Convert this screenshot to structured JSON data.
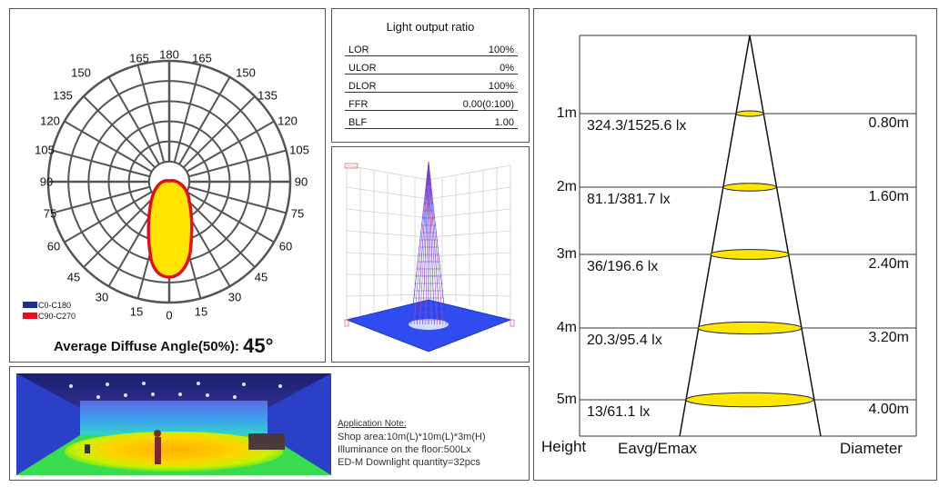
{
  "polar": {
    "angle_labels": {
      "top": [
        "165",
        "180",
        "165"
      ],
      "left": [
        "150",
        "135",
        "120",
        "105",
        "90",
        "75",
        "60",
        "45",
        "30",
        "15"
      ],
      "right": [
        "150",
        "135",
        "120",
        "105",
        "90",
        "75",
        "60",
        "45",
        "30",
        "15"
      ],
      "bottom": "0"
    },
    "legend": [
      {
        "label": "C0-C180",
        "color": "#1f2f8f"
      },
      {
        "label": "C90-C270",
        "color": "#e0101e"
      }
    ],
    "avg_angle_label": "Average Diffuse Angle(50%):",
    "avg_angle_value": "45°"
  },
  "light_output_ratio": {
    "title": "Light output ratio",
    "rows": [
      {
        "label": "LOR",
        "value": "100%"
      },
      {
        "label": "ULOR",
        "value": "0%"
      },
      {
        "label": "DLOR",
        "value": "100%"
      },
      {
        "label": "FFR",
        "value": "0.00(0:100)"
      },
      {
        "label": "BLF",
        "value": "1.00"
      }
    ]
  },
  "application_note": {
    "heading": "Application Note:",
    "lines": [
      "Shop area:10m(L)*10m(L)*3m(H)",
      "Illuminance on the floor:500Lx",
      "ED-M Downlight quantity=32pcs"
    ]
  },
  "cone": {
    "rows": [
      {
        "height": "1m",
        "eavg_emax": "324.3/1525.6 lx",
        "diameter": "0.80m"
      },
      {
        "height": "2m",
        "eavg_emax": "81.1/381.7 lx",
        "diameter": "1.60m"
      },
      {
        "height": "3m",
        "eavg_emax": "36/196.6 lx",
        "diameter": "2.40m"
      },
      {
        "height": "4m",
        "eavg_emax": "20.3/95.4 lx",
        "diameter": "3.20m"
      },
      {
        "height": "5m",
        "eavg_emax": "13/61.1 lx",
        "diameter": "4.00m"
      }
    ],
    "footer": {
      "height": "Height",
      "eavg_emax": "Eavg/Emax",
      "diameter": "Diameter"
    },
    "beam_color": "#ffe600"
  }
}
